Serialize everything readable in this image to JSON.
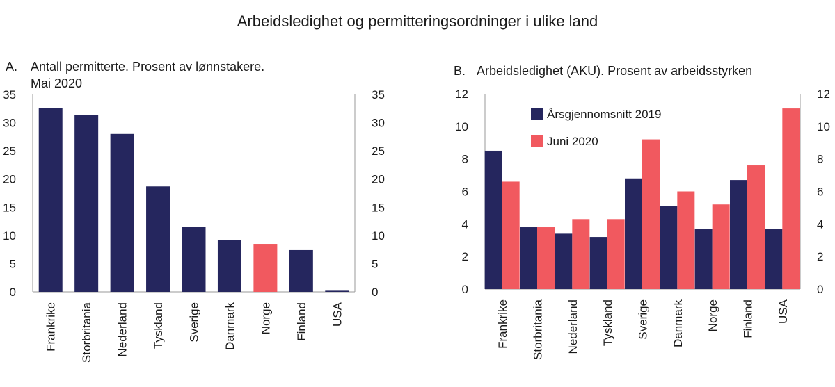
{
  "title": "Arbeidsledighet og permitteringsordninger i ulike land",
  "colors": {
    "navy": "#25265e",
    "red": "#f1595f",
    "axis": "#9a9a9a"
  },
  "panel_a": {
    "letter": "A.",
    "title_line1": "Antall permitterte. Prosent av lønnstakere.",
    "title_line2": "Mai 2020"
  },
  "panel_b": {
    "letter": "B.",
    "title_line1": "Arbeidsledighet (AKU). Prosent av arbeidsstyrken"
  },
  "chart_data": [
    {
      "type": "bar",
      "title": "Antall permitterte. Prosent av lønnstakere. Mai 2020",
      "categories": [
        "Frankrike",
        "Storbritania",
        "Nederland",
        "Tyskland",
        "Sverige",
        "Danmark",
        "Norge",
        "Finland",
        "USA"
      ],
      "values": [
        32.6,
        31.4,
        28.0,
        18.7,
        11.5,
        9.2,
        8.5,
        7.4,
        0.2
      ],
      "highlight": "Norge",
      "ylim": [
        0,
        35
      ],
      "yticks": [
        0,
        5,
        10,
        15,
        20,
        25,
        30,
        35
      ],
      "xlabel": "",
      "ylabel": ""
    },
    {
      "type": "bar",
      "title": "Arbeidsledighet (AKU). Prosent av arbeidsstyrken",
      "categories": [
        "Frankrike",
        "Storbritania",
        "Nederland",
        "Tyskland",
        "Sverige",
        "Danmark",
        "Norge",
        "Finland",
        "USA"
      ],
      "series": [
        {
          "name": "Årsgjennomsnitt 2019",
          "values": [
            8.5,
            3.8,
            3.4,
            3.2,
            6.8,
            5.1,
            3.7,
            6.7,
            3.7
          ]
        },
        {
          "name": "Juni 2020",
          "values": [
            6.6,
            3.8,
            4.3,
            4.3,
            9.2,
            6.0,
            5.2,
            7.6,
            11.1
          ]
        }
      ],
      "ylim": [
        0,
        12
      ],
      "yticks": [
        0,
        2,
        4,
        6,
        8,
        10,
        12
      ],
      "legend": "top-left",
      "xlabel": "",
      "ylabel": ""
    }
  ]
}
